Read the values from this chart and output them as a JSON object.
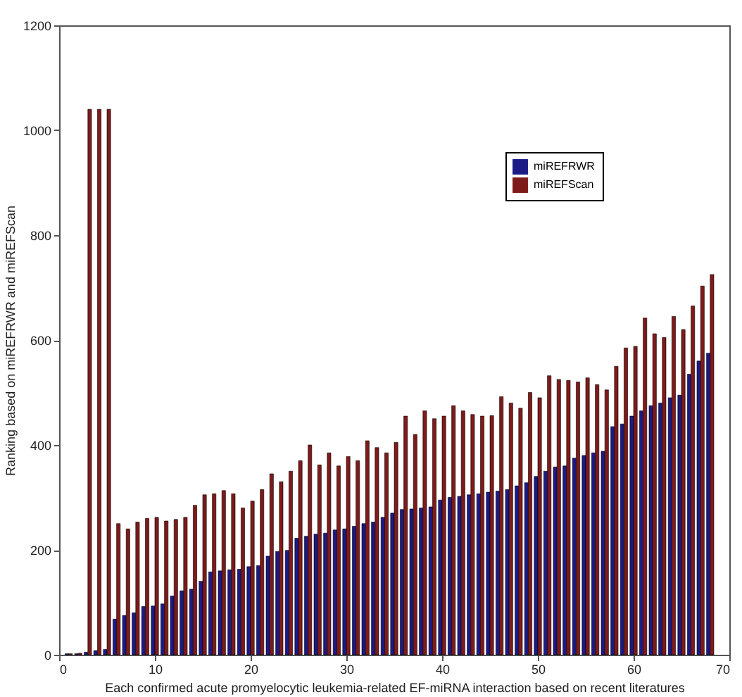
{
  "chart_data": {
    "type": "bar",
    "xlabel": "Each confirmed acute promyelocytic leukemia-related EF-miRNA interaction based on recent literatures",
    "ylabel": "Ranking based on miREFRWR and miREFScan",
    "x": [
      1,
      2,
      3,
      4,
      5,
      6,
      7,
      8,
      9,
      10,
      11,
      12,
      13,
      14,
      15,
      16,
      17,
      18,
      19,
      20,
      21,
      22,
      23,
      24,
      25,
      26,
      27,
      28,
      29,
      30,
      31,
      32,
      33,
      34,
      35,
      36,
      37,
      38,
      39,
      40,
      41,
      42,
      43,
      44,
      45,
      46,
      47,
      48,
      49,
      50,
      51,
      52,
      53,
      54,
      55,
      56,
      57,
      58,
      59,
      60,
      61,
      62,
      63,
      64,
      65,
      66,
      67,
      68
    ],
    "series": [
      {
        "name": "miREFRWR",
        "color": "#1c1a86",
        "values": [
          2,
          2,
          5,
          8,
          10,
          68,
          75,
          80,
          92,
          93,
          97,
          112,
          122,
          125,
          140,
          158,
          160,
          162,
          163,
          168,
          170,
          188,
          197,
          199,
          222,
          226,
          230,
          232,
          238,
          240,
          245,
          250,
          253,
          262,
          270,
          277,
          278,
          280,
          282,
          295,
          300,
          302,
          305,
          307,
          310,
          312,
          315,
          322,
          328,
          340,
          350,
          358,
          360,
          375,
          380,
          385,
          388,
          435,
          440,
          455,
          465,
          475,
          480,
          490,
          495,
          535,
          560,
          575
        ]
      },
      {
        "name": "miREFScan",
        "color": "#7f1a1a",
        "values": [
          2,
          3,
          1040,
          1040,
          1040,
          250,
          240,
          253,
          260,
          262,
          255,
          258,
          262,
          285,
          305,
          307,
          313,
          307,
          280,
          293,
          315,
          345,
          330,
          350,
          370,
          400,
          362,
          385,
          360,
          378,
          370,
          408,
          395,
          385,
          405,
          455,
          420,
          465,
          450,
          455,
          475,
          465,
          458,
          455,
          456,
          492,
          480,
          470,
          500,
          490,
          532,
          525,
          523,
          520,
          528,
          515,
          505,
          550,
          585,
          588,
          642,
          612,
          605,
          645,
          620,
          665,
          703,
          725
        ]
      }
    ],
    "xlim": [
      0,
      70
    ],
    "xticks": [
      0,
      10,
      20,
      30,
      40,
      50,
      60,
      70
    ],
    "ylim": [
      0,
      1200
    ],
    "yticks": [
      0,
      200,
      400,
      600,
      800,
      1000,
      1200
    ],
    "grid": false,
    "legend": "top right"
  }
}
